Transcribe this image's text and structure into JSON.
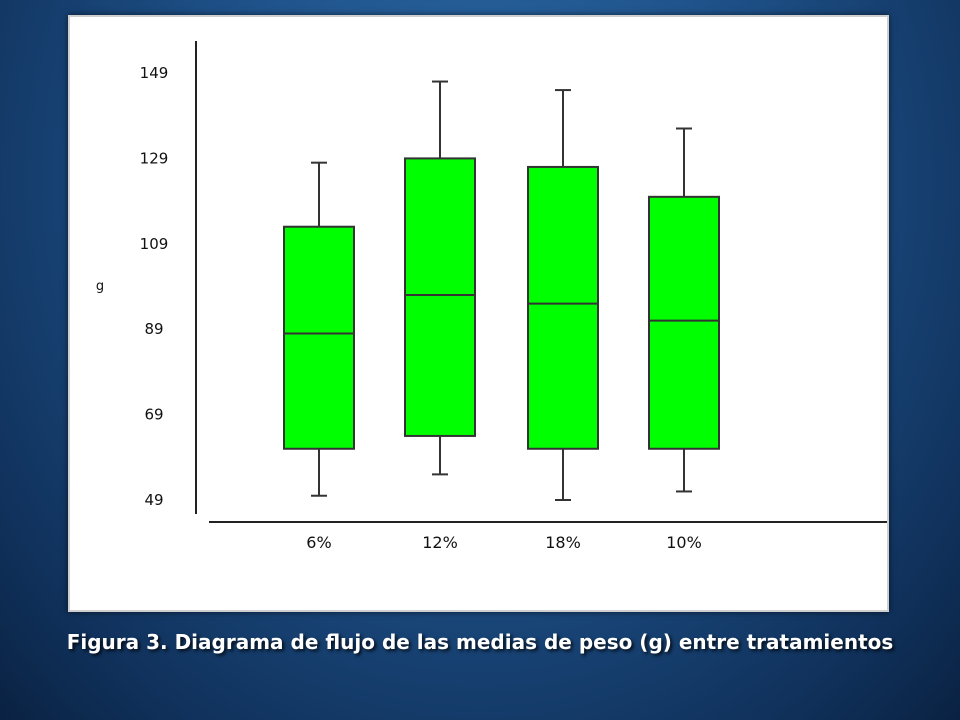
{
  "caption": "Figura 3. Diagrama de flujo de las medias de peso (g) entre tratamientos",
  "chart_data": {
    "type": "box",
    "title": "",
    "ylabel": "g",
    "xlabel": "",
    "yticks": [
      "149",
      "129",
      "109",
      "89",
      "69",
      "49"
    ],
    "ylim": [
      49,
      149
    ],
    "categories": [
      "6%",
      "12%",
      "18%",
      "10%"
    ],
    "boxes": [
      {
        "category": "6%",
        "min": 50,
        "q1": 61,
        "median": 88,
        "q3": 113,
        "max": 128
      },
      {
        "category": "12%",
        "min": 55,
        "q1": 64,
        "median": 97,
        "q3": 129,
        "max": 147
      },
      {
        "category": "18%",
        "min": 49,
        "q1": 61,
        "median": 95,
        "q3": 127,
        "max": 145
      },
      {
        "category": "10%",
        "min": 51,
        "q1": 61,
        "median": 91,
        "q3": 120,
        "max": 136
      }
    ],
    "box_color": "#00ff00",
    "grid": false,
    "legend": "none"
  }
}
